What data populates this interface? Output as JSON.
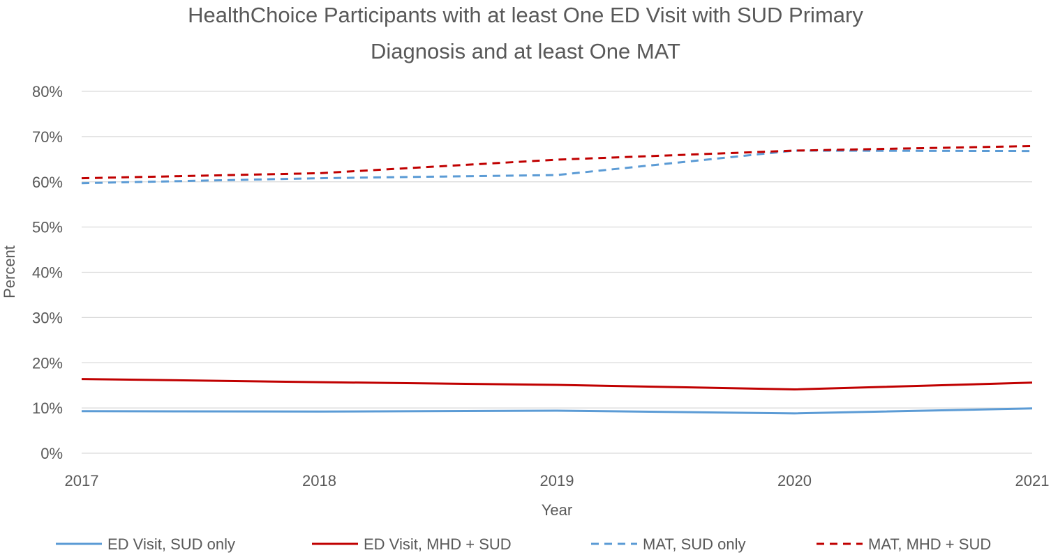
{
  "chart_data": {
    "type": "line",
    "title": [
      "HealthChoice Participants with at least One ED Visit with SUD Primary",
      "Diagnosis and at least One MAT"
    ],
    "xlabel": "Year",
    "ylabel": "Percent",
    "categories": [
      "2017",
      "2018",
      "2019",
      "2020",
      "2021"
    ],
    "ylim": [
      0,
      80
    ],
    "ytick_step": 10,
    "ytick_labels": [
      "0%",
      "10%",
      "20%",
      "30%",
      "40%",
      "50%",
      "60%",
      "70%",
      "80%"
    ],
    "grid": "horizontal",
    "legend_position": "bottom",
    "series": [
      {
        "name": "ED Visit, SUD only",
        "values": [
          9.3,
          9.2,
          9.4,
          8.8,
          9.9
        ],
        "color": "#5B9BD5",
        "dash": "solid"
      },
      {
        "name": "ED Visit, MHD + SUD",
        "values": [
          16.4,
          15.7,
          15.1,
          14.1,
          15.6
        ],
        "color": "#C00000",
        "dash": "solid"
      },
      {
        "name": "MAT, SUD only",
        "values": [
          59.7,
          60.8,
          61.5,
          66.9,
          66.8
        ],
        "color": "#5B9BD5",
        "dash": "dashed"
      },
      {
        "name": "MAT, MHD + SUD",
        "values": [
          60.8,
          61.9,
          64.9,
          66.9,
          67.9
        ],
        "color": "#C00000",
        "dash": "dashed"
      }
    ]
  }
}
